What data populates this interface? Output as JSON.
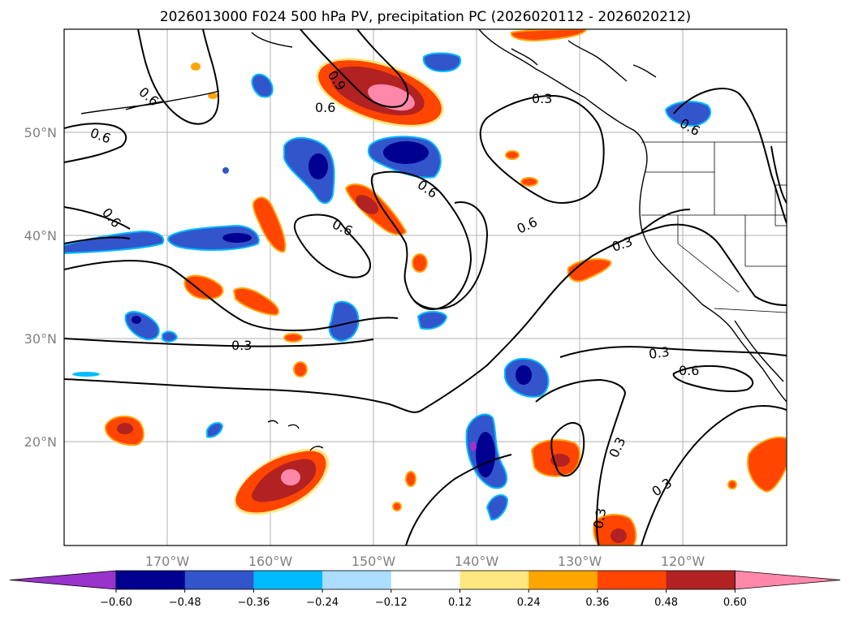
{
  "title": "2026013000 F024 500 hPa PV, precipitation PC (2026020112 - 2026020212)",
  "axes": {
    "lat_labels": [
      "50°N",
      "40°N",
      "30°N",
      "20°N"
    ],
    "lon_labels": [
      "170°W",
      "160°W",
      "150°W",
      "140°W",
      "130°W",
      "120°W"
    ],
    "lat_range": [
      10,
      60
    ],
    "lon_range": [
      -180,
      -110
    ]
  },
  "contour_labels": [
    "0.6",
    "0.6",
    "0.6",
    "0.9",
    "0.3",
    "0.6",
    "0.6",
    "0.6",
    "0.6",
    "0.3",
    "0.3",
    "0.3",
    "0.6",
    "0.6",
    "0.3",
    "0.3",
    "0.3"
  ],
  "colorbar": {
    "ticks": [
      "−0.60",
      "−0.48",
      "−0.36",
      "−0.24",
      "−0.12",
      "0.12",
      "0.24",
      "0.36",
      "0.48",
      "0.60"
    ],
    "colors": [
      "#9933cc",
      "#000090",
      "#3355cc",
      "#00bbff",
      "#aaddff",
      "#ffffff",
      "#ffe680",
      "#ffa500",
      "#ff4500",
      "#b22222",
      "#ff88aa"
    ]
  },
  "chart_data": {
    "type": "map-contour",
    "variable_contours": "500 hPa PV",
    "variable_shaded": "precipitation PC",
    "contour_levels": [
      0.3,
      0.6,
      0.9
    ],
    "shading_levels": [
      -0.6,
      -0.48,
      -0.36,
      -0.24,
      -0.12,
      0.12,
      0.24,
      0.36,
      0.48,
      0.6
    ],
    "init": "2026013000",
    "forecast_hour": "F024",
    "valid_window": "2026020112 - 2026020212"
  }
}
